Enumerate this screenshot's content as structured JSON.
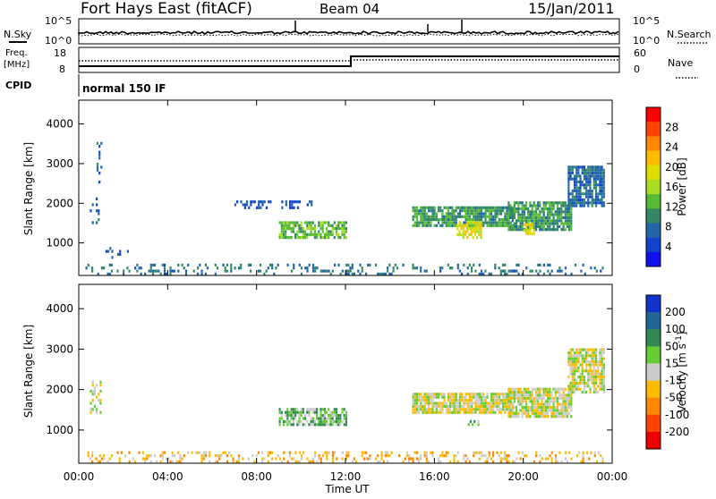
{
  "header": {
    "station": "Fort Hays East (fitACF)",
    "beam": "Beam 04",
    "date": "15/Jan/2011"
  },
  "noise_panel": {
    "left_label": "N.Sky",
    "right_label": "N.Search",
    "left_ticks": [
      "10^5",
      "10^0"
    ],
    "right_ticks": [
      "10^5",
      "10^0"
    ]
  },
  "freq_panel": {
    "left_label_1": "Freq.",
    "left_label_2": "[MHz]",
    "right_label": "Nave",
    "left_ticks": [
      "18",
      "8"
    ],
    "right_ticks": [
      "60",
      "0"
    ]
  },
  "cpid": {
    "label": "CPID",
    "value": "normal 150 IF"
  },
  "time_axis": {
    "ticks": [
      "00:00",
      "04:00",
      "08:00",
      "12:00",
      "16:00",
      "20:00",
      "00:00"
    ],
    "label": "Time UT"
  },
  "power_colorbar": {
    "label": "Power [dB]",
    "ticks": [
      "28",
      "24",
      "20",
      "16",
      "12",
      "8",
      "4"
    ],
    "colors": [
      "#ff0000",
      "#ff4400",
      "#ff8800",
      "#ffbb00",
      "#dddd00",
      "#aadd22",
      "#55bb33",
      "#338866",
      "#2266aa",
      "#1144cc",
      "#1111ee"
    ]
  },
  "velocity_colorbar": {
    "label": "Velocity [m s",
    "label_sup": "-1",
    "label_end": "]",
    "ticks": [
      "200",
      "100",
      "50",
      "15",
      "-15",
      "-50",
      "-100",
      "-200"
    ],
    "colors": [
      "#1133cc",
      "#226699",
      "#338855",
      "#66cc33",
      "#cccccc",
      "#ffbb00",
      "#ff8800",
      "#ff4400",
      "#ee0000"
    ]
  },
  "chart_data": [
    {
      "type": "heatmap",
      "name": "power",
      "ylabel": "Slant Range [km]",
      "xlabel": "Time UT",
      "x_range_hours": [
        0,
        24
      ],
      "y_range_km": [
        180,
        4600
      ],
      "yticks": [
        1000,
        2000,
        3000,
        4000
      ],
      "zlim": [
        0,
        30
      ],
      "patches": [
        {
          "t0": 0.5,
          "t1": 0.9,
          "r0": 1400,
          "r1": 2200,
          "v": 6,
          "density": 0.25
        },
        {
          "t0": 0.8,
          "t1": 1.0,
          "r0": 2500,
          "r1": 3500,
          "v": 6,
          "density": 0.3
        },
        {
          "t0": 1.2,
          "t1": 2.2,
          "r0": 600,
          "r1": 900,
          "v": 6,
          "density": 0.2
        },
        {
          "t0": 0.3,
          "t1": 23.6,
          "r0": 180,
          "r1": 420,
          "v": 8,
          "density": 0.22
        },
        {
          "t0": 7.0,
          "t1": 10.5,
          "r0": 1850,
          "r1": 2050,
          "v": 5,
          "density": 0.35
        },
        {
          "t0": 9.0,
          "t1": 12.0,
          "r0": 1100,
          "r1": 1500,
          "v": 12,
          "density": 0.75
        },
        {
          "t0": 15.0,
          "t1": 19.5,
          "r0": 1400,
          "r1": 1900,
          "v": 10,
          "density": 0.85
        },
        {
          "t0": 17.0,
          "t1": 18.1,
          "r0": 1100,
          "r1": 1500,
          "v": 18,
          "density": 0.7
        },
        {
          "t0": 19.3,
          "t1": 22.2,
          "r0": 1300,
          "r1": 2000,
          "v": 10,
          "density": 0.85
        },
        {
          "t0": 20.0,
          "t1": 20.5,
          "r0": 1200,
          "r1": 1450,
          "v": 18,
          "density": 0.7
        },
        {
          "t0": 22.0,
          "t1": 23.6,
          "r0": 1900,
          "r1": 2900,
          "v": 7,
          "density": 0.8
        }
      ]
    },
    {
      "type": "heatmap",
      "name": "velocity",
      "ylabel": "Slant Range [km]",
      "xlabel": "Time UT",
      "x_range_hours": [
        0,
        24
      ],
      "y_range_km": [
        180,
        4600
      ],
      "yticks": [
        1000,
        2000,
        3000,
        4000
      ],
      "zlim": [
        -250,
        250
      ],
      "patches": [
        {
          "t0": 0.5,
          "t1": 1.0,
          "r0": 1400,
          "r1": 2200,
          "v": 0,
          "density": 0.25
        },
        {
          "t0": 0.3,
          "t1": 23.6,
          "r0": 180,
          "r1": 450,
          "v": -30,
          "density": 0.3
        },
        {
          "t0": 9.0,
          "t1": 12.0,
          "r0": 1100,
          "r1": 1500,
          "v": 40,
          "density": 0.75
        },
        {
          "t0": 15.0,
          "t1": 19.5,
          "r0": 1400,
          "r1": 1900,
          "v": 0,
          "density": 0.85
        },
        {
          "t0": 19.3,
          "t1": 22.2,
          "r0": 1300,
          "r1": 2000,
          "v": 0,
          "density": 0.85
        },
        {
          "t0": 22.0,
          "t1": 23.6,
          "r0": 1900,
          "r1": 3000,
          "v": 0,
          "density": 0.8
        },
        {
          "t0": 17.5,
          "t1": 18.0,
          "r0": 1100,
          "r1": 1250,
          "v": 30,
          "density": 0.6
        }
      ]
    }
  ]
}
